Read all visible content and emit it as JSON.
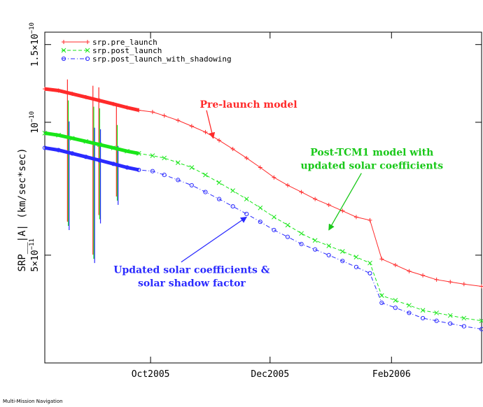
{
  "footer": "Multi-Mission Navigation",
  "chart_data": {
    "type": "line",
    "title": "",
    "xlabel": "",
    "ylabel": "SRP__|A| (km/sec*sec)",
    "x_scale": "date",
    "y_scale": "log",
    "xlim": [
      "2005-08-08",
      "2006-03-19"
    ],
    "ylim": [
      2.85e-11,
      1.6e-10
    ],
    "x_ticks": [
      {
        "label": "Oct2005",
        "date": "2005-10-01"
      },
      {
        "label": "Dec2005",
        "date": "2005-12-01"
      },
      {
        "label": "Feb2006",
        "date": "2006-02-01"
      }
    ],
    "y_ticks": [
      {
        "label": "1.5×10",
        "exp": "−10",
        "value": 1.5e-10
      },
      {
        "label": "10",
        "exp": "−10",
        "value": 1e-10
      },
      {
        "label": "5×10",
        "exp": "−11",
        "value": 5e-11
      }
    ],
    "grid": false,
    "legend_position": "top-left",
    "series": [
      {
        "name": "srp.pre_launch",
        "color": "#ff2a2a",
        "dash": "solid",
        "marker": "plus",
        "values": [
          {
            "x": "2005-08-08",
            "y": 1.19e-10
          },
          {
            "x": "2005-08-15",
            "y": 1.18e-10
          },
          {
            "x": "2005-08-22",
            "y": 1.16e-10
          },
          {
            "x": "2005-08-29",
            "y": 1.14e-10
          },
          {
            "x": "2005-09-05",
            "y": 1.12e-10
          },
          {
            "x": "2005-09-12",
            "y": 1.1e-10
          },
          {
            "x": "2005-09-19",
            "y": 1.08e-10
          },
          {
            "x": "2005-09-25",
            "y": 1.065e-10
          },
          {
            "x": "2005-10-02",
            "y": 1.055e-10
          },
          {
            "x": "2005-10-08",
            "y": 1.035e-10
          },
          {
            "x": "2005-10-15",
            "y": 1.01e-10
          },
          {
            "x": "2005-10-22",
            "y": 9.8e-11
          },
          {
            "x": "2005-10-29",
            "y": 9.5e-11
          },
          {
            "x": "2005-11-05",
            "y": 9.1e-11
          },
          {
            "x": "2005-11-12",
            "y": 8.7e-11
          },
          {
            "x": "2005-11-19",
            "y": 8.3e-11
          },
          {
            "x": "2005-11-26",
            "y": 7.9e-11
          },
          {
            "x": "2005-12-03",
            "y": 7.5e-11
          },
          {
            "x": "2005-12-10",
            "y": 7.2e-11
          },
          {
            "x": "2005-12-17",
            "y": 6.95e-11
          },
          {
            "x": "2005-12-24",
            "y": 6.7e-11
          },
          {
            "x": "2005-12-31",
            "y": 6.5e-11
          },
          {
            "x": "2006-01-07",
            "y": 6.3e-11
          },
          {
            "x": "2006-01-14",
            "y": 6.1e-11
          },
          {
            "x": "2006-01-21",
            "y": 6e-11
          },
          {
            "x": "2006-01-27",
            "y": 4.9e-11
          },
          {
            "x": "2006-02-03",
            "y": 4.75e-11
          },
          {
            "x": "2006-02-10",
            "y": 4.6e-11
          },
          {
            "x": "2006-02-17",
            "y": 4.5e-11
          },
          {
            "x": "2006-02-24",
            "y": 4.4e-11
          },
          {
            "x": "2006-03-03",
            "y": 4.35e-11
          },
          {
            "x": "2006-03-10",
            "y": 4.3e-11
          },
          {
            "x": "2006-03-19",
            "y": 4.25e-11
          }
        ]
      },
      {
        "name": "srp.post_launch",
        "color": "#19e619",
        "dash": "dashed",
        "marker": "cross",
        "values": [
          {
            "x": "2005-08-08",
            "y": 9.45e-11
          },
          {
            "x": "2005-08-15",
            "y": 9.35e-11
          },
          {
            "x": "2005-08-22",
            "y": 9.2e-11
          },
          {
            "x": "2005-08-29",
            "y": 9.05e-11
          },
          {
            "x": "2005-09-05",
            "y": 8.9e-11
          },
          {
            "x": "2005-09-12",
            "y": 8.75e-11
          },
          {
            "x": "2005-09-19",
            "y": 8.6e-11
          },
          {
            "x": "2005-09-25",
            "y": 8.5e-11
          },
          {
            "x": "2005-10-02",
            "y": 8.4e-11
          },
          {
            "x": "2005-10-08",
            "y": 8.3e-11
          },
          {
            "x": "2005-10-15",
            "y": 8.1e-11
          },
          {
            "x": "2005-10-22",
            "y": 7.9e-11
          },
          {
            "x": "2005-10-29",
            "y": 7.6e-11
          },
          {
            "x": "2005-11-05",
            "y": 7.3e-11
          },
          {
            "x": "2005-11-12",
            "y": 7e-11
          },
          {
            "x": "2005-11-19",
            "y": 6.7e-11
          },
          {
            "x": "2005-11-26",
            "y": 6.4e-11
          },
          {
            "x": "2005-12-03",
            "y": 6.1e-11
          },
          {
            "x": "2005-12-10",
            "y": 5.85e-11
          },
          {
            "x": "2005-12-17",
            "y": 5.6e-11
          },
          {
            "x": "2005-12-24",
            "y": 5.4e-11
          },
          {
            "x": "2005-12-31",
            "y": 5.25e-11
          },
          {
            "x": "2006-01-07",
            "y": 5.1e-11
          },
          {
            "x": "2006-01-14",
            "y": 4.95e-11
          },
          {
            "x": "2006-01-21",
            "y": 4.8e-11
          },
          {
            "x": "2006-01-27",
            "y": 4.05e-11
          },
          {
            "x": "2006-02-03",
            "y": 3.95e-11
          },
          {
            "x": "2006-02-10",
            "y": 3.85e-11
          },
          {
            "x": "2006-02-17",
            "y": 3.75e-11
          },
          {
            "x": "2006-02-24",
            "y": 3.7e-11
          },
          {
            "x": "2006-03-03",
            "y": 3.65e-11
          },
          {
            "x": "2006-03-10",
            "y": 3.6e-11
          },
          {
            "x": "2006-03-19",
            "y": 3.55e-11
          }
        ]
      },
      {
        "name": "srp.post_launch_with_shadowing",
        "color": "#2a2aff",
        "dash": "dashdot",
        "marker": "circle",
        "values": [
          {
            "x": "2005-08-08",
            "y": 8.75e-11
          },
          {
            "x": "2005-08-15",
            "y": 8.65e-11
          },
          {
            "x": "2005-08-22",
            "y": 8.5e-11
          },
          {
            "x": "2005-08-29",
            "y": 8.35e-11
          },
          {
            "x": "2005-09-05",
            "y": 8.2e-11
          },
          {
            "x": "2005-09-12",
            "y": 8.05e-11
          },
          {
            "x": "2005-09-19",
            "y": 7.9e-11
          },
          {
            "x": "2005-09-25",
            "y": 7.8e-11
          },
          {
            "x": "2005-10-02",
            "y": 7.75e-11
          },
          {
            "x": "2005-10-08",
            "y": 7.6e-11
          },
          {
            "x": "2005-10-15",
            "y": 7.4e-11
          },
          {
            "x": "2005-10-22",
            "y": 7.2e-11
          },
          {
            "x": "2005-10-29",
            "y": 6.95e-11
          },
          {
            "x": "2005-11-05",
            "y": 6.7e-11
          },
          {
            "x": "2005-11-12",
            "y": 6.45e-11
          },
          {
            "x": "2005-11-19",
            "y": 6.2e-11
          },
          {
            "x": "2005-11-26",
            "y": 5.95e-11
          },
          {
            "x": "2005-12-03",
            "y": 5.7e-11
          },
          {
            "x": "2005-12-10",
            "y": 5.5e-11
          },
          {
            "x": "2005-12-17",
            "y": 5.3e-11
          },
          {
            "x": "2005-12-24",
            "y": 5.15e-11
          },
          {
            "x": "2005-12-31",
            "y": 5e-11
          },
          {
            "x": "2006-01-07",
            "y": 4.85e-11
          },
          {
            "x": "2006-01-14",
            "y": 4.7e-11
          },
          {
            "x": "2006-01-21",
            "y": 4.55e-11
          },
          {
            "x": "2006-01-27",
            "y": 3.9e-11
          },
          {
            "x": "2006-02-03",
            "y": 3.8e-11
          },
          {
            "x": "2006-02-10",
            "y": 3.7e-11
          },
          {
            "x": "2006-02-17",
            "y": 3.6e-11
          },
          {
            "x": "2006-02-24",
            "y": 3.55e-11
          },
          {
            "x": "2006-03-03",
            "y": 3.5e-11
          },
          {
            "x": "2006-03-10",
            "y": 3.45e-11
          },
          {
            "x": "2006-03-19",
            "y": 3.4e-11
          }
        ]
      }
    ],
    "spikes": [
      {
        "x": "2005-08-20",
        "top": 1.25e-10,
        "bottom": 5.7e-11
      },
      {
        "x": "2005-09-02",
        "top": 1.21e-10,
        "bottom": 4.8e-11
      },
      {
        "x": "2005-09-05",
        "top": 1.2e-10,
        "bottom": 5.9e-11
      },
      {
        "x": "2005-09-14",
        "top": 1.1e-10,
        "bottom": 6.5e-11
      }
    ],
    "annotations": [
      {
        "text": "Pre-launch model",
        "color": "#ff2a2a",
        "lines": [
          "Pre-launch model"
        ],
        "x": "2005-11-20",
        "y": 1.08e-10,
        "anchor": "middle",
        "arrow_to": {
          "x": "2005-11-02",
          "y": 9.2e-11
        }
      },
      {
        "text": "Post-TCM1 model with updated solar coefficients",
        "color": "#19c819",
        "lines": [
          "Post-TCM1 model with",
          "updated solar coefficients"
        ],
        "x": "2006-01-22",
        "y": 8.4e-11,
        "anchor": "middle",
        "arrow_to": {
          "x": "2005-12-31",
          "y": 5.7e-11
        }
      },
      {
        "text": "Updated solar coefficients & solar shadow factor",
        "color": "#2a2aff",
        "lines": [
          "Updated solar coefficients &",
          "solar shadow factor"
        ],
        "x": "2005-10-22",
        "y": 4.55e-11,
        "anchor": "middle",
        "arrow_to": {
          "x": "2005-11-19",
          "y": 6.1e-11
        }
      }
    ]
  }
}
